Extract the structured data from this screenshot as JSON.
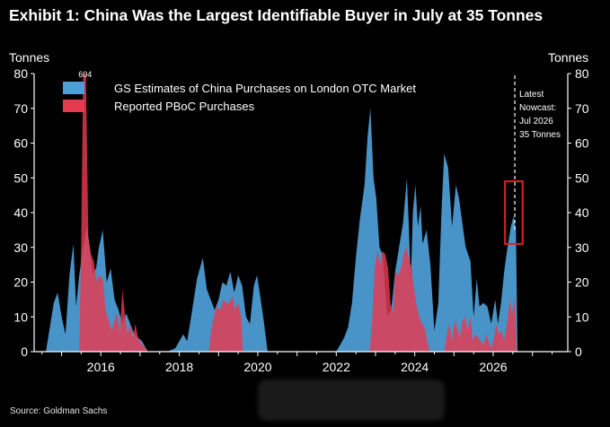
{
  "title": "Exhibit 1: China Was the Largest Identifiable Buyer in July at 35 Tonnes",
  "source": "Source: Goldman Sachs",
  "chart_data": {
    "type": "area",
    "title": "Exhibit 1: China Was the Largest Identifiable Buyer in July at 35 Tonnes",
    "ylabel_left": "Tonnes",
    "ylabel_right": "Tonnes",
    "ylim": [
      0,
      80
    ],
    "yticks": [
      0,
      10,
      20,
      30,
      40,
      50,
      60,
      70,
      80
    ],
    "xlim": [
      2014.3,
      2027.9
    ],
    "xticks": [
      2016,
      2018,
      2020,
      2022,
      2024,
      2026
    ],
    "xtick_labels": [
      "2016",
      "2018",
      "2020",
      "2022",
      "2024",
      "2026"
    ],
    "grid": false,
    "legend_position": "top-left",
    "colors": {
      "gs": "#4e9fd8",
      "pboc": "#e63a50",
      "axis": "#ffffff",
      "highlight": "#e02020"
    },
    "series": [
      {
        "name": "GS Estimates of China Purchases on London OTC Market",
        "color": "#4e9fd8",
        "points": [
          [
            2014.6,
            0
          ],
          [
            2014.8,
            14
          ],
          [
            2014.9,
            17
          ],
          [
            2015.0,
            10
          ],
          [
            2015.1,
            5
          ],
          [
            2015.2,
            22
          ],
          [
            2015.3,
            31
          ],
          [
            2015.37,
            13
          ],
          [
            2015.45,
            22
          ],
          [
            2015.55,
            30
          ],
          [
            2015.65,
            36
          ],
          [
            2015.73,
            28
          ],
          [
            2015.8,
            22
          ],
          [
            2015.88,
            24
          ],
          [
            2015.95,
            30
          ],
          [
            2016.05,
            35
          ],
          [
            2016.15,
            20
          ],
          [
            2016.25,
            24
          ],
          [
            2016.35,
            15
          ],
          [
            2016.45,
            12
          ],
          [
            2016.55,
            8
          ],
          [
            2016.65,
            11
          ],
          [
            2016.75,
            8
          ],
          [
            2016.85,
            5
          ],
          [
            2016.95,
            4
          ],
          [
            2017.05,
            3
          ],
          [
            2017.2,
            0
          ],
          [
            2017.7,
            0
          ],
          [
            2017.9,
            1
          ],
          [
            2018.0,
            3
          ],
          [
            2018.1,
            5
          ],
          [
            2018.2,
            3
          ],
          [
            2018.3,
            10
          ],
          [
            2018.45,
            21
          ],
          [
            2018.55,
            25
          ],
          [
            2018.6,
            27
          ],
          [
            2018.7,
            18
          ],
          [
            2018.8,
            15
          ],
          [
            2018.9,
            12
          ],
          [
            2019.0,
            15
          ],
          [
            2019.1,
            20
          ],
          [
            2019.2,
            19
          ],
          [
            2019.3,
            23
          ],
          [
            2019.4,
            17
          ],
          [
            2019.5,
            22
          ],
          [
            2019.6,
            19
          ],
          [
            2019.7,
            10
          ],
          [
            2019.8,
            8
          ],
          [
            2019.9,
            19
          ],
          [
            2019.98,
            22
          ],
          [
            2020.05,
            17
          ],
          [
            2020.15,
            9
          ],
          [
            2020.25,
            0
          ],
          [
            2022.0,
            0
          ],
          [
            2022.1,
            2
          ],
          [
            2022.2,
            4
          ],
          [
            2022.3,
            7
          ],
          [
            2022.4,
            14
          ],
          [
            2022.5,
            27
          ],
          [
            2022.6,
            38
          ],
          [
            2022.72,
            48
          ],
          [
            2022.8,
            62
          ],
          [
            2022.87,
            70
          ],
          [
            2022.95,
            50
          ],
          [
            2023.02,
            44
          ],
          [
            2023.1,
            30
          ],
          [
            2023.18,
            28
          ],
          [
            2023.3,
            10
          ],
          [
            2023.4,
            12
          ],
          [
            2023.5,
            23
          ],
          [
            2023.6,
            30
          ],
          [
            2023.7,
            37
          ],
          [
            2023.8,
            50
          ],
          [
            2023.85,
            36
          ],
          [
            2023.9,
            20
          ],
          [
            2023.95,
            40
          ],
          [
            2024.02,
            48
          ],
          [
            2024.08,
            36
          ],
          [
            2024.15,
            42
          ],
          [
            2024.2,
            31
          ],
          [
            2024.3,
            35
          ],
          [
            2024.4,
            25
          ],
          [
            2024.5,
            6
          ],
          [
            2024.6,
            14
          ],
          [
            2024.68,
            40
          ],
          [
            2024.75,
            57
          ],
          [
            2024.85,
            53
          ],
          [
            2024.95,
            36
          ],
          [
            2025.05,
            48
          ],
          [
            2025.13,
            44
          ],
          [
            2025.2,
            38
          ],
          [
            2025.3,
            30
          ],
          [
            2025.42,
            26
          ],
          [
            2025.5,
            10
          ],
          [
            2025.58,
            21
          ],
          [
            2025.65,
            13
          ],
          [
            2025.75,
            14
          ],
          [
            2025.85,
            13
          ],
          [
            2025.95,
            8
          ],
          [
            2026.05,
            15
          ],
          [
            2026.12,
            8
          ],
          [
            2026.2,
            14
          ],
          [
            2026.28,
            23
          ],
          [
            2026.35,
            29
          ],
          [
            2026.45,
            36
          ],
          [
            2026.52,
            39
          ],
          [
            2026.58,
            35
          ],
          [
            2026.62,
            0
          ]
        ]
      },
      {
        "name": "Reported PBoC Purchases",
        "color": "#e63a50",
        "points": [
          [
            2015.45,
            0
          ],
          [
            2015.5,
            32
          ],
          [
            2015.55,
            80
          ],
          [
            2015.62,
            80
          ],
          [
            2015.68,
            33
          ],
          [
            2015.75,
            28
          ],
          [
            2015.82,
            26
          ],
          [
            2015.9,
            20
          ],
          [
            2015.95,
            22
          ],
          [
            2016.05,
            21
          ],
          [
            2016.12,
            12
          ],
          [
            2016.2,
            9
          ],
          [
            2016.28,
            6
          ],
          [
            2016.35,
            9
          ],
          [
            2016.42,
            11
          ],
          [
            2016.48,
            5
          ],
          [
            2016.55,
            18
          ],
          [
            2016.62,
            10
          ],
          [
            2016.68,
            5
          ],
          [
            2016.75,
            8
          ],
          [
            2016.82,
            4
          ],
          [
            2016.88,
            8
          ],
          [
            2016.95,
            4
          ],
          [
            2017.05,
            2
          ],
          [
            2017.15,
            1
          ],
          [
            2017.2,
            0
          ],
          [
            2018.75,
            0
          ],
          [
            2018.8,
            5
          ],
          [
            2018.88,
            10
          ],
          [
            2018.95,
            13
          ],
          [
            2019.05,
            12
          ],
          [
            2019.12,
            15
          ],
          [
            2019.2,
            14
          ],
          [
            2019.28,
            14
          ],
          [
            2019.35,
            16
          ],
          [
            2019.42,
            12
          ],
          [
            2019.5,
            14
          ],
          [
            2019.58,
            10
          ],
          [
            2019.62,
            0
          ],
          [
            2022.85,
            0
          ],
          [
            2022.92,
            10
          ],
          [
            2022.98,
            24
          ],
          [
            2023.05,
            29
          ],
          [
            2023.12,
            25
          ],
          [
            2023.18,
            29
          ],
          [
            2023.25,
            28
          ],
          [
            2023.32,
            24
          ],
          [
            2023.38,
            14
          ],
          [
            2023.45,
            11
          ],
          [
            2023.5,
            23
          ],
          [
            2023.58,
            22
          ],
          [
            2023.65,
            24
          ],
          [
            2023.72,
            28
          ],
          [
            2023.78,
            30
          ],
          [
            2023.85,
            27
          ],
          [
            2023.92,
            24
          ],
          [
            2023.98,
            18
          ],
          [
            2024.05,
            13
          ],
          [
            2024.12,
            10
          ],
          [
            2024.18,
            8
          ],
          [
            2024.25,
            7
          ],
          [
            2024.32,
            3
          ],
          [
            2024.38,
            0
          ],
          [
            2024.75,
            0
          ],
          [
            2024.82,
            5
          ],
          [
            2024.88,
            8
          ],
          [
            2024.95,
            3
          ],
          [
            2025.02,
            9
          ],
          [
            2025.08,
            7
          ],
          [
            2025.15,
            4
          ],
          [
            2025.22,
            9
          ],
          [
            2025.28,
            10
          ],
          [
            2025.35,
            6
          ],
          [
            2025.42,
            10
          ],
          [
            2025.48,
            3
          ],
          [
            2025.55,
            5
          ],
          [
            2025.62,
            4
          ],
          [
            2025.68,
            3
          ],
          [
            2025.75,
            2
          ],
          [
            2025.82,
            5
          ],
          [
            2025.88,
            3
          ],
          [
            2025.95,
            1
          ],
          [
            2026.02,
            4
          ],
          [
            2026.08,
            8
          ],
          [
            2026.15,
            5
          ],
          [
            2026.22,
            6
          ],
          [
            2026.28,
            3
          ],
          [
            2026.35,
            8
          ],
          [
            2026.42,
            15
          ],
          [
            2026.48,
            11
          ],
          [
            2026.55,
            15
          ],
          [
            2026.6,
            0
          ]
        ]
      }
    ],
    "annotations": [
      {
        "text": "604",
        "x": 2015.6,
        "y": 80,
        "note": "PBoC bar truncated at axis top"
      },
      {
        "lines": [
          "Latest",
          "Nowcast:",
          "Jul 2026",
          "35 Tonnes"
        ],
        "x": 2026.55,
        "y": 80
      }
    ],
    "nowcast": {
      "x": 2026.55,
      "y": 35,
      "box_ylim": [
        31,
        49
      ],
      "box_xlim": [
        2026.3,
        2026.75
      ]
    }
  }
}
